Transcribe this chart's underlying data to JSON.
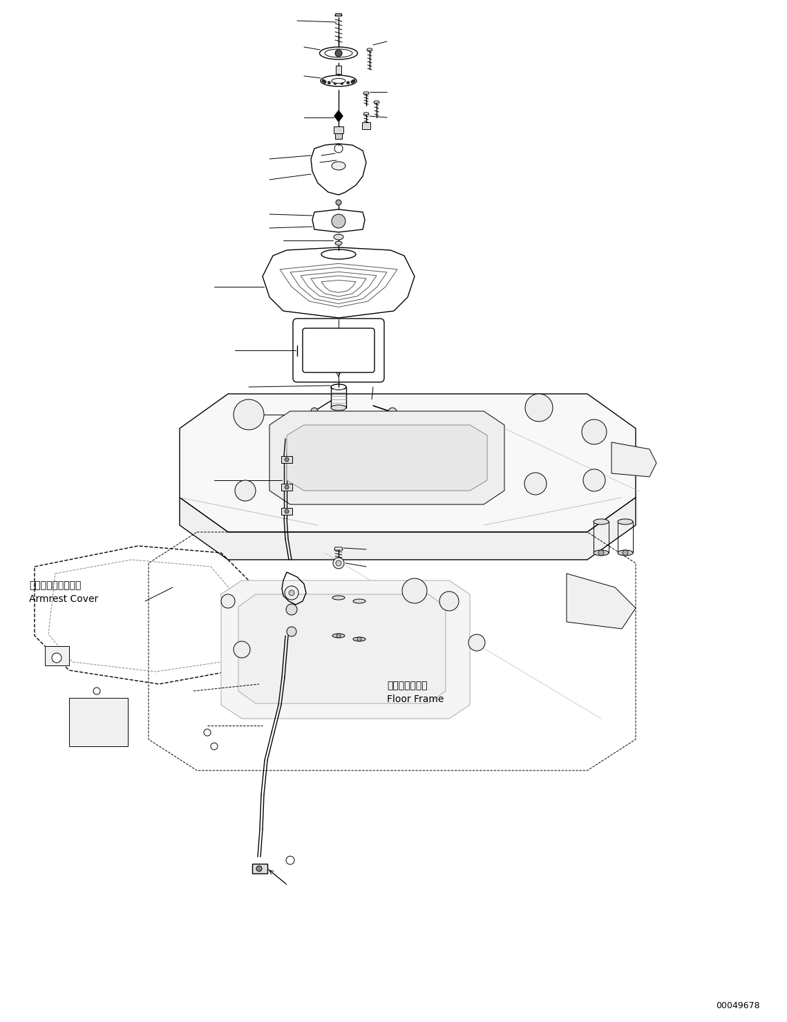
{
  "bg_color": "#ffffff",
  "fig_width": 11.39,
  "fig_height": 14.79,
  "dpi": 100,
  "part_number": "00049678",
  "label_armrest_jp": "アームレストカバー",
  "label_armrest_en": "Armrest Cover",
  "label_floor_jp": "フロアフレーム",
  "label_floor_en": "Floor Frame",
  "lw_thin": 0.7,
  "lw_med": 1.0,
  "lw_thick": 1.5
}
